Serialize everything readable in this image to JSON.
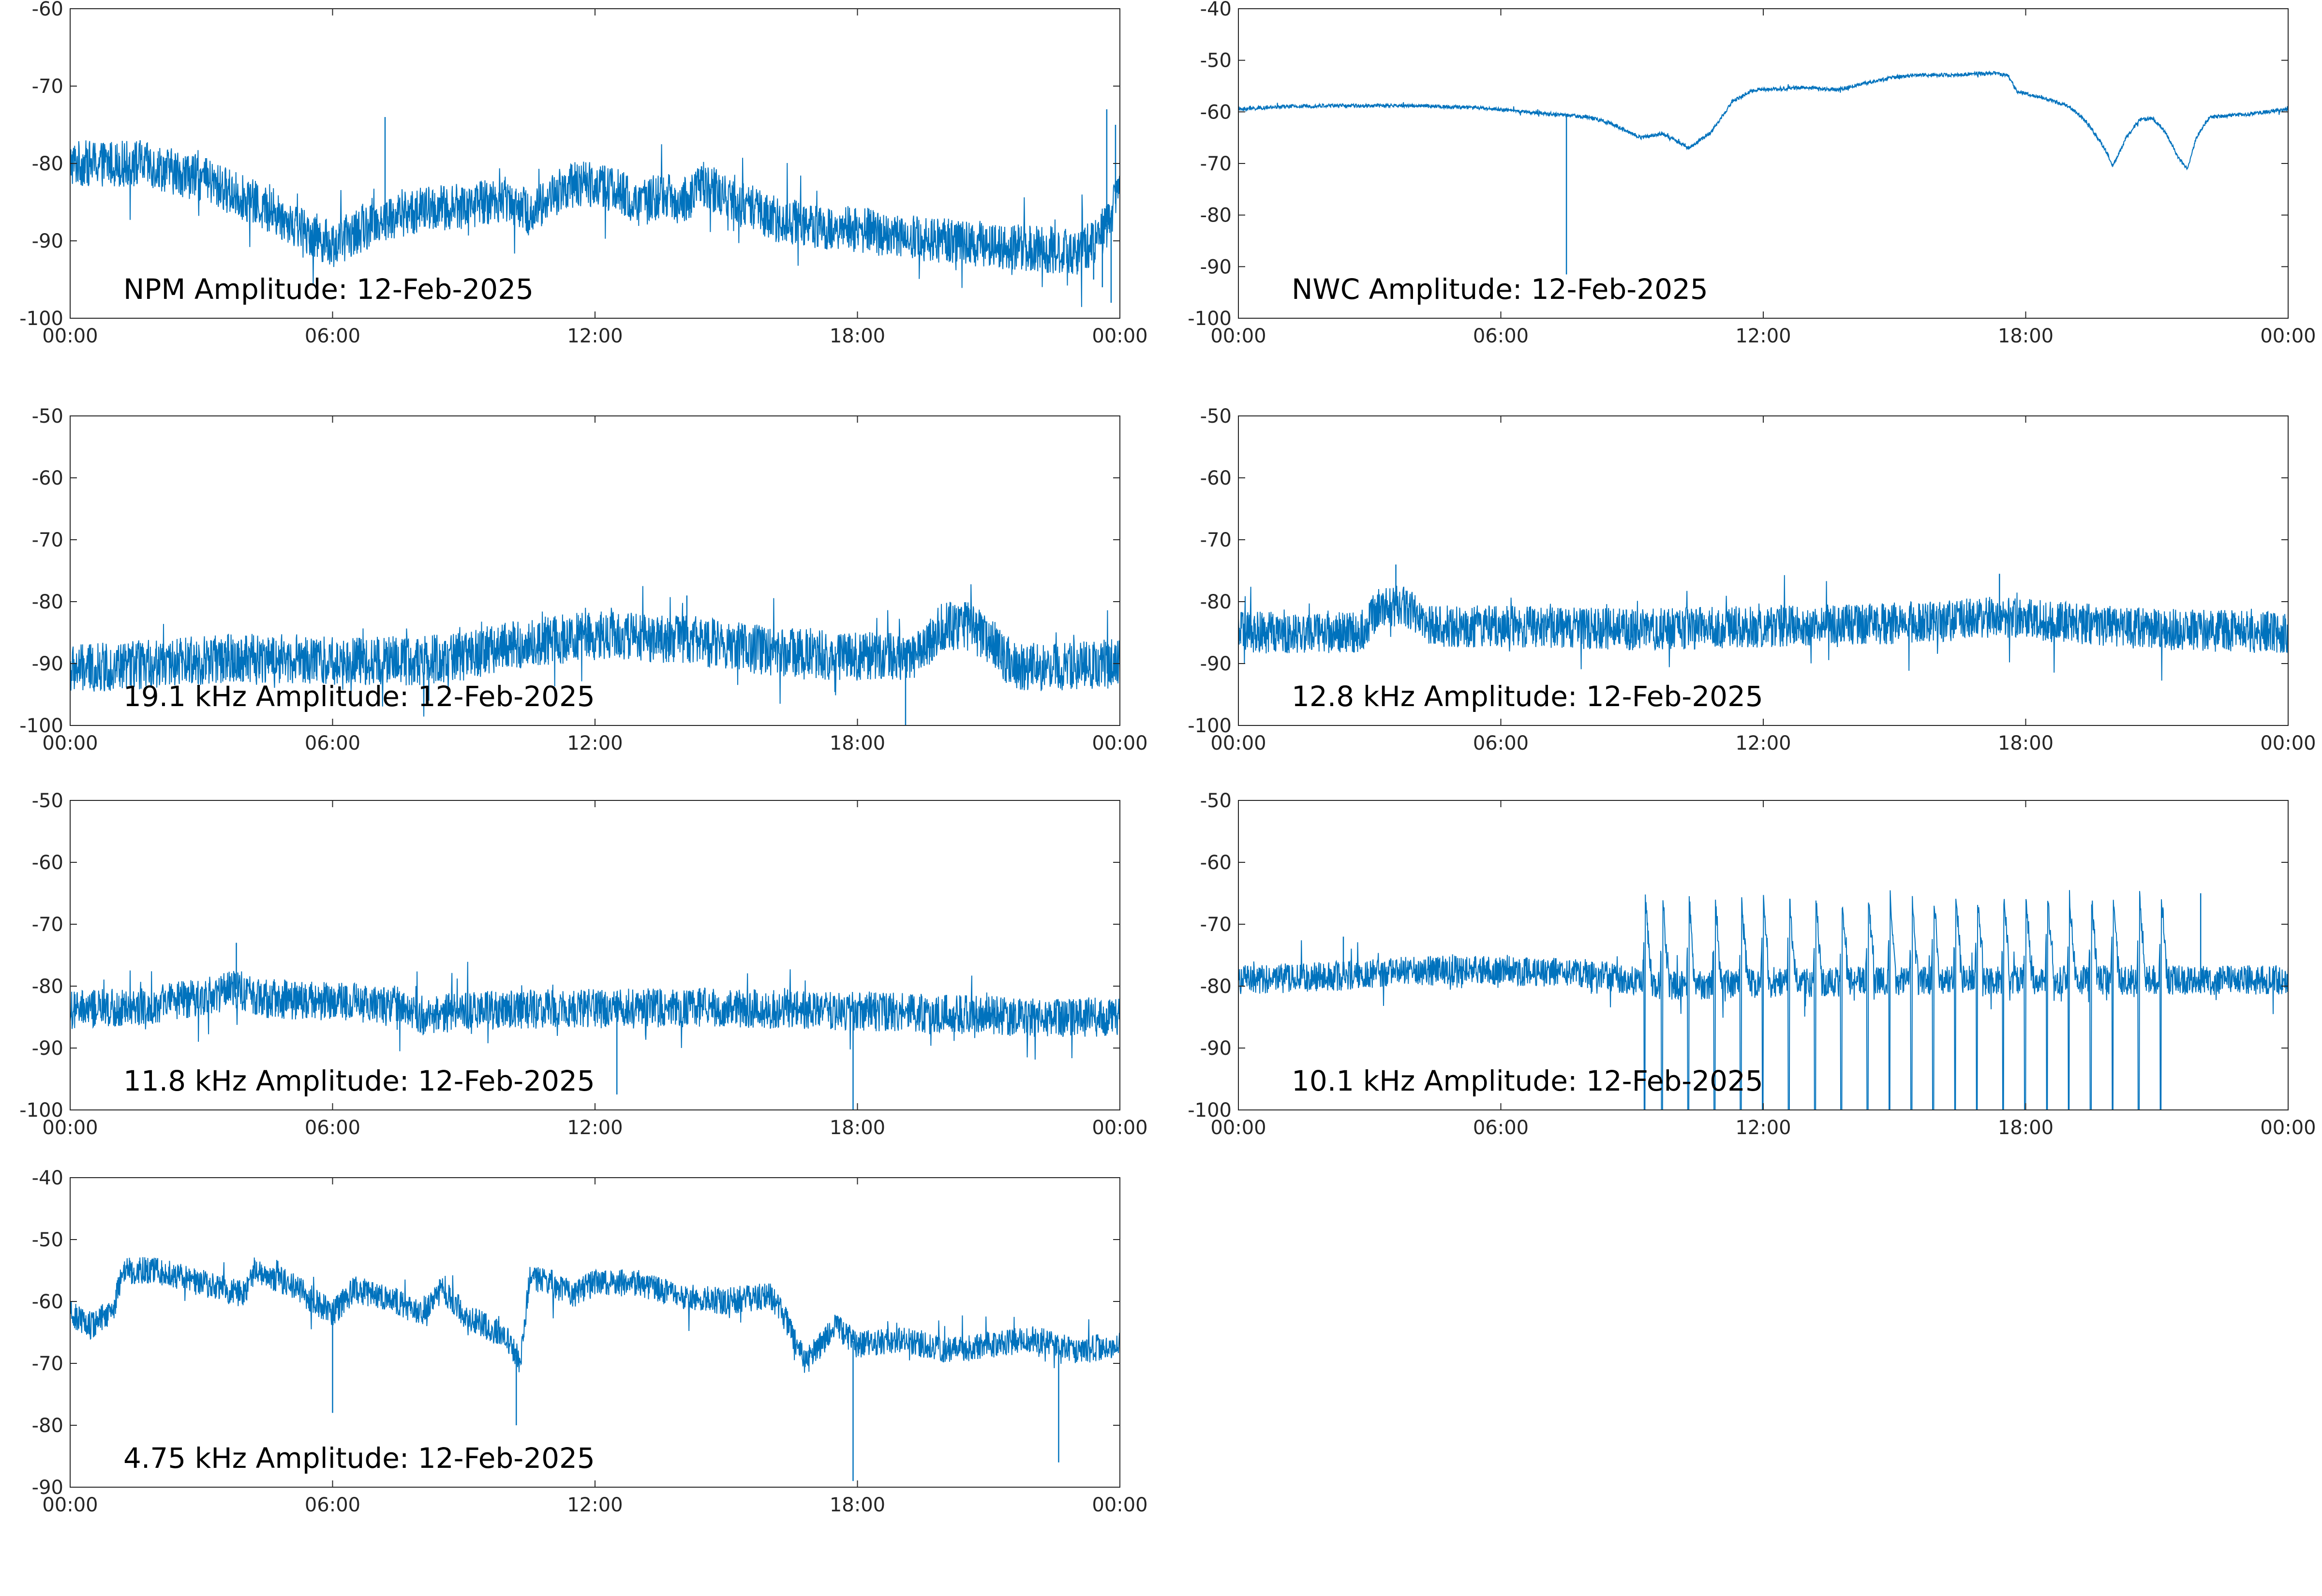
{
  "figure": {
    "date": "12-Feb-2025",
    "line_color": "#0072BD",
    "axis_color": "#262626",
    "background": "#ffffff"
  },
  "chart_data": [
    {
      "type": "line",
      "label": "NPM Amplitude: 12-Feb-2025",
      "x_ticks": [
        "00:00",
        "06:00",
        "12:00",
        "18:00",
        "00:00"
      ],
      "y_ticks": [
        -60,
        -70,
        -80,
        -90,
        -100
      ],
      "xlim_hours": [
        0,
        24
      ],
      "ylim": [
        -100,
        -60
      ],
      "grid": false,
      "noise": 3.0,
      "trend": [
        [
          0,
          -80
        ],
        [
          1.5,
          -80
        ],
        [
          2,
          -80.5
        ],
        [
          3,
          -82
        ],
        [
          4,
          -84.5
        ],
        [
          5,
          -87.5
        ],
        [
          6,
          -90.5
        ],
        [
          7,
          -87.5
        ],
        [
          8,
          -86
        ],
        [
          9,
          -85.5
        ],
        [
          10,
          -84.5
        ],
        [
          10.5,
          -86.5
        ],
        [
          11.3,
          -83
        ],
        [
          12,
          -82.5
        ],
        [
          12.5,
          -83.5
        ],
        [
          13,
          -85.5
        ],
        [
          13.5,
          -84
        ],
        [
          14,
          -85
        ],
        [
          14.5,
          -82.5
        ],
        [
          15,
          -84.5
        ],
        [
          16,
          -87
        ],
        [
          17,
          -88
        ],
        [
          18,
          -88.5
        ],
        [
          19,
          -89.5
        ],
        [
          20,
          -90
        ],
        [
          21,
          -90.5
        ],
        [
          22,
          -91
        ],
        [
          23,
          -91.5
        ],
        [
          23.5,
          -90
        ],
        [
          24,
          -84
        ]
      ],
      "spikes": [
        [
          7.2,
          -74
        ],
        [
          1.6,
          -77
        ],
        [
          23.7,
          -73
        ],
        [
          23.9,
          -75
        ],
        [
          23.6,
          -96
        ],
        [
          23.8,
          -98
        ],
        [
          23.4,
          -95
        ]
      ]
    },
    {
      "type": "line",
      "label": "NWC Amplitude: 12-Feb-2025",
      "x_ticks": [
        "00:00",
        "06:00",
        "12:00",
        "18:00",
        "00:00"
      ],
      "y_ticks": [
        -40,
        -50,
        -60,
        -70,
        -80,
        -90,
        -100
      ],
      "xlim_hours": [
        0,
        24
      ],
      "ylim": [
        -100,
        -40
      ],
      "grid": false,
      "noise": 0.35,
      "trend": [
        [
          0,
          -59.5
        ],
        [
          1,
          -59
        ],
        [
          2,
          -58.8
        ],
        [
          4,
          -58.8
        ],
        [
          5.5,
          -59.2
        ],
        [
          7,
          -60.3
        ],
        [
          8,
          -61
        ],
        [
          8.5,
          -62.2
        ],
        [
          9.2,
          -65
        ],
        [
          9.7,
          -64.2
        ],
        [
          10.3,
          -67
        ],
        [
          10.8,
          -64
        ],
        [
          11.3,
          -58
        ],
        [
          11.8,
          -55.7
        ],
        [
          13,
          -55.3
        ],
        [
          13.7,
          -55.7
        ],
        [
          14.3,
          -54.5
        ],
        [
          15,
          -53.3
        ],
        [
          15.5,
          -52.9
        ],
        [
          16.5,
          -52.8
        ],
        [
          17.3,
          -52.5
        ],
        [
          17.6,
          -53
        ],
        [
          17.8,
          -56
        ],
        [
          18.5,
          -57.5
        ],
        [
          19,
          -59
        ],
        [
          19.4,
          -62
        ],
        [
          19.8,
          -67
        ],
        [
          20,
          -70.5
        ],
        [
          20.3,
          -65
        ],
        [
          20.6,
          -61.5
        ],
        [
          20.9,
          -61.2
        ],
        [
          21.2,
          -64
        ],
        [
          21.5,
          -69
        ],
        [
          21.7,
          -71
        ],
        [
          21.9,
          -65
        ],
        [
          22.2,
          -61
        ],
        [
          23,
          -60.5
        ],
        [
          24,
          -59.5
        ]
      ],
      "spikes": [
        [
          7.5,
          -91.5
        ]
      ]
    },
    {
      "type": "line",
      "label": "19.1 kHz Amplitude: 12-Feb-2025",
      "x_ticks": [
        "00:00",
        "06:00",
        "12:00",
        "18:00",
        "00:00"
      ],
      "y_ticks": [
        -50,
        -60,
        -70,
        -80,
        -90,
        -100
      ],
      "xlim_hours": [
        0,
        24
      ],
      "ylim": [
        -100,
        -50
      ],
      "grid": false,
      "noise": 4.0,
      "trend": [
        [
          0,
          -91
        ],
        [
          2,
          -90
        ],
        [
          4,
          -89
        ],
        [
          6,
          -89.5
        ],
        [
          8,
          -89.5
        ],
        [
          9,
          -89
        ],
        [
          10,
          -87
        ],
        [
          12,
          -85.5
        ],
        [
          14,
          -86
        ],
        [
          16,
          -88
        ],
        [
          18,
          -89
        ],
        [
          19.5,
          -88.5
        ],
        [
          19.9,
          -84
        ],
        [
          20.5,
          -84
        ],
        [
          21,
          -86
        ],
        [
          21.5,
          -90
        ],
        [
          22,
          -90.5
        ],
        [
          24,
          -90
        ]
      ],
      "spikes": [
        [
          19.1,
          -100
        ],
        [
          8.2,
          -96
        ],
        [
          14.1,
          -79
        ]
      ]
    },
    {
      "type": "line",
      "label": "12.8 kHz Amplitude: 12-Feb-2025",
      "x_ticks": [
        "00:00",
        "06:00",
        "12:00",
        "18:00",
        "00:00"
      ],
      "y_ticks": [
        -50,
        -60,
        -70,
        -80,
        -90,
        -100
      ],
      "xlim_hours": [
        0,
        24
      ],
      "ylim": [
        -100,
        -50
      ],
      "grid": false,
      "noise": 3.4,
      "trend": [
        [
          0,
          -85
        ],
        [
          2,
          -85
        ],
        [
          2.8,
          -85
        ],
        [
          3.2,
          -81
        ],
        [
          3.8,
          -80.5
        ],
        [
          4.3,
          -84
        ],
        [
          6,
          -84
        ],
        [
          9,
          -84.5
        ],
        [
          12,
          -84
        ],
        [
          15,
          -83.5
        ],
        [
          17.5,
          -82.5
        ],
        [
          19,
          -83.5
        ],
        [
          21,
          -84.5
        ],
        [
          24,
          -85
        ]
      ],
      "spikes": [
        [
          3.6,
          -74
        ],
        [
          17.4,
          -75.5
        ]
      ]
    },
    {
      "type": "line",
      "label": "11.8 kHz Amplitude: 12-Feb-2025",
      "x_ticks": [
        "00:00",
        "06:00",
        "12:00",
        "18:00",
        "00:00"
      ],
      "y_ticks": [
        -50,
        -60,
        -70,
        -80,
        -90,
        -100
      ],
      "xlim_hours": [
        0,
        24
      ],
      "ylim": [
        -100,
        -50
      ],
      "grid": false,
      "noise": 3.2,
      "trend": [
        [
          0,
          -84
        ],
        [
          2,
          -83
        ],
        [
          3.8,
          -80.5
        ],
        [
          4.5,
          -82
        ],
        [
          6,
          -82.5
        ],
        [
          7.5,
          -83
        ],
        [
          8.2,
          -85
        ],
        [
          9,
          -84
        ],
        [
          12,
          -83.5
        ],
        [
          15,
          -83.5
        ],
        [
          18,
          -84
        ],
        [
          20,
          -84.5
        ],
        [
          22,
          -85
        ],
        [
          24,
          -85
        ]
      ],
      "spikes": [
        [
          12.5,
          -97.5
        ],
        [
          17.9,
          -100
        ],
        [
          3.8,
          -73
        ]
      ]
    },
    {
      "type": "line",
      "label": "10.1 kHz Amplitude: 12-Feb-2025",
      "x_ticks": [
        "00:00",
        "06:00",
        "12:00",
        "18:00",
        "00:00"
      ],
      "y_ticks": [
        -50,
        -60,
        -70,
        -80,
        -90,
        -100
      ],
      "xlim_hours": [
        0,
        24
      ],
      "ylim": [
        -100,
        -50
      ],
      "grid": false,
      "noise": 2.4,
      "trend": [
        [
          0,
          -79
        ],
        [
          2,
          -78.5
        ],
        [
          4,
          -77.5
        ],
        [
          6,
          -77.5
        ],
        [
          8,
          -78
        ],
        [
          9,
          -79
        ],
        [
          9.5,
          -80
        ],
        [
          12,
          -79.5
        ],
        [
          16,
          -79
        ],
        [
          19,
          -79
        ],
        [
          21,
          -79
        ],
        [
          22,
          -79
        ],
        [
          24,
          -79
        ]
      ],
      "bursts": [
        9.3,
        9.7,
        10.3,
        10.9,
        11.5,
        12.0,
        12.6,
        13.2,
        13.8,
        14.4,
        14.9,
        15.4,
        15.9,
        16.4,
        16.9,
        17.5,
        18.0,
        18.5,
        19.0,
        19.5,
        20.0,
        20.6,
        21.1
      ],
      "burst_top": -64,
      "spikes": [
        [
          22.0,
          -65
        ],
        [
          2.4,
          -72
        ]
      ]
    },
    {
      "type": "line",
      "label": "4.75 kHz Amplitude: 12-Feb-2025",
      "x_ticks": [
        "00:00",
        "06:00",
        "12:00",
        "18:00",
        "00:00"
      ],
      "y_ticks": [
        -40,
        -50,
        -60,
        -70,
        -80,
        -90
      ],
      "xlim_hours": [
        0,
        24
      ],
      "ylim": [
        -90,
        -40
      ],
      "grid": false,
      "noise": 2.2,
      "trend": [
        [
          0,
          -62
        ],
        [
          0.5,
          -64
        ],
        [
          1,
          -61
        ],
        [
          1.2,
          -55
        ],
        [
          2,
          -55
        ],
        [
          3,
          -57
        ],
        [
          4,
          -59
        ],
        [
          4.2,
          -55
        ],
        [
          5,
          -57
        ],
        [
          6,
          -62
        ],
        [
          6.5,
          -58
        ],
        [
          7.5,
          -60
        ],
        [
          8,
          -62
        ],
        [
          8.5,
          -58
        ],
        [
          9,
          -62
        ],
        [
          10,
          -66
        ],
        [
          10.3,
          -70
        ],
        [
          10.5,
          -56
        ],
        [
          11,
          -57
        ],
        [
          11.5,
          -59
        ],
        [
          12,
          -57
        ],
        [
          13,
          -57
        ],
        [
          14,
          -59
        ],
        [
          15,
          -60
        ],
        [
          16,
          -59
        ],
        [
          16.3,
          -62
        ],
        [
          16.8,
          -70
        ],
        [
          17.5,
          -64
        ],
        [
          18,
          -67
        ],
        [
          19,
          -66
        ],
        [
          20,
          -68
        ],
        [
          21,
          -67
        ],
        [
          22,
          -66
        ],
        [
          23,
          -68
        ],
        [
          24,
          -67
        ]
      ],
      "spikes": [
        [
          17.9,
          -89
        ],
        [
          22.6,
          -86
        ],
        [
          6.0,
          -78
        ],
        [
          10.2,
          -80
        ],
        [
          2.0,
          -53
        ]
      ]
    }
  ]
}
